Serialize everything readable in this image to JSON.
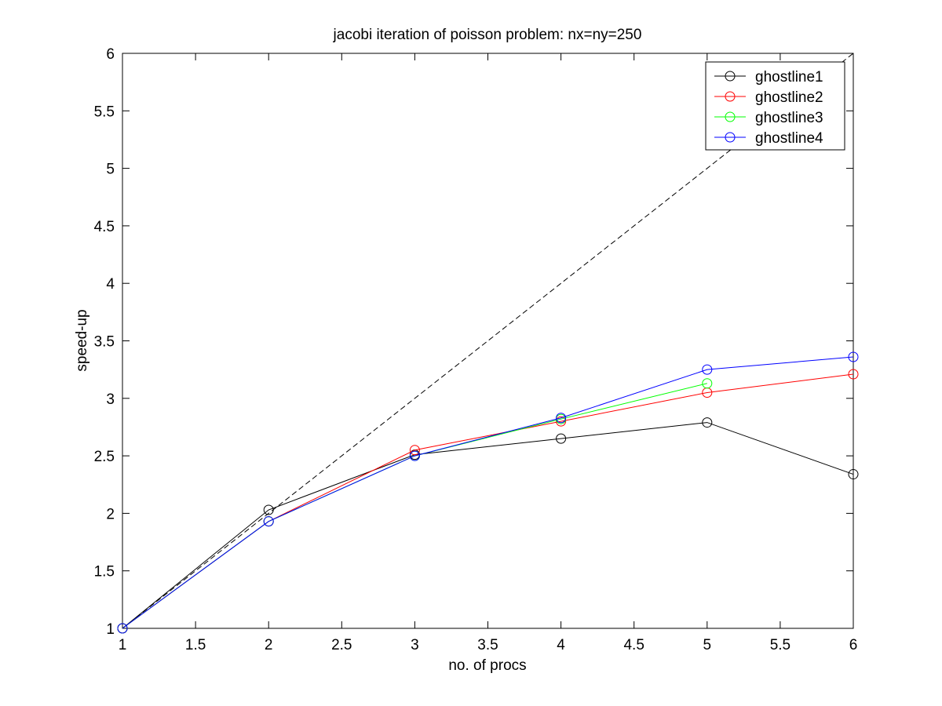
{
  "chart_data": {
    "type": "line",
    "title": "jacobi iteration of poisson problem: nx=ny=250",
    "xlabel": "no. of procs",
    "ylabel": "speed-up",
    "xlim": [
      1,
      6
    ],
    "ylim": [
      1,
      6
    ],
    "xticks": [
      "1",
      "1.5",
      "2",
      "2.5",
      "3",
      "3.5",
      "4",
      "4.5",
      "5",
      "5.5",
      "6"
    ],
    "yticks": [
      "1",
      "1.5",
      "2",
      "2.5",
      "3",
      "3.5",
      "4",
      "4.5",
      "5",
      "5.5",
      "6"
    ],
    "grid": false,
    "legend_position": "top-right",
    "reference_line": {
      "style": "dashed",
      "color": "#000000",
      "x": [
        1,
        6
      ],
      "y": [
        1,
        6
      ]
    },
    "series": [
      {
        "name": "ghostline1",
        "color": "#000000",
        "marker": "circle",
        "x": [
          1,
          2,
          3,
          4,
          5,
          6
        ],
        "y": [
          1.0,
          2.03,
          2.51,
          2.65,
          2.79,
          2.34
        ]
      },
      {
        "name": "ghostline2",
        "color": "#ff0000",
        "marker": "circle",
        "x": [
          1,
          2,
          3,
          4,
          5,
          6
        ],
        "y": [
          1.0,
          1.93,
          2.55,
          2.8,
          3.05,
          3.21
        ]
      },
      {
        "name": "ghostline3",
        "color": "#00ff00",
        "marker": "circle",
        "x": [
          1,
          2,
          3,
          4,
          5
        ],
        "y": [
          1.0,
          1.93,
          2.5,
          2.82,
          3.13
        ]
      },
      {
        "name": "ghostline4",
        "color": "#0000ff",
        "marker": "circle",
        "x": [
          1,
          2,
          3,
          4,
          5,
          6
        ],
        "y": [
          1.0,
          1.93,
          2.5,
          2.83,
          3.25,
          3.36
        ]
      }
    ]
  }
}
